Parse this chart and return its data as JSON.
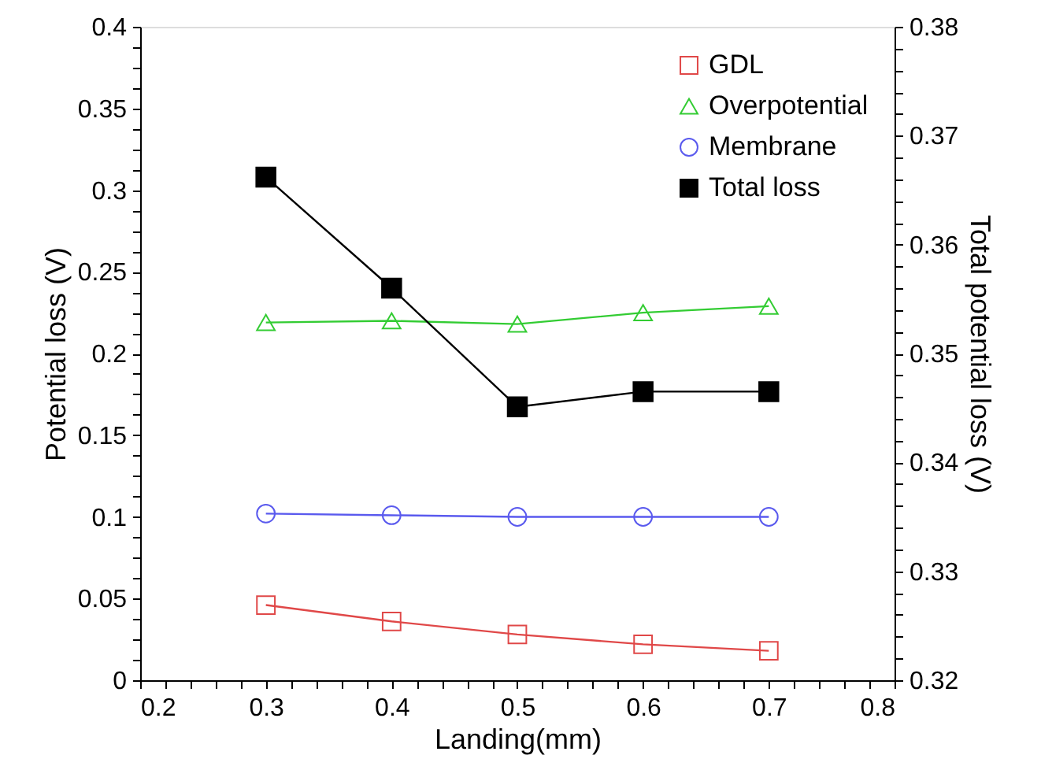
{
  "chart_data": {
    "type": "line",
    "xlabel": "Landing(mm)",
    "ylabel": "Potential loss (V)",
    "y2label": "Total potential loss (V)",
    "x": [
      0.3,
      0.4,
      0.5,
      0.6,
      0.7
    ],
    "series": [
      {
        "name": "GDL",
        "color": "#e04848",
        "marker": "square",
        "values": [
          0.046,
          0.036,
          0.028,
          0.022,
          0.018
        ]
      },
      {
        "name": "Overpotential",
        "color": "#33cc33",
        "marker": "triangle",
        "values": [
          0.219,
          0.22,
          0.218,
          0.225,
          0.229
        ]
      },
      {
        "name": "Membrane",
        "color": "#5a5aee",
        "marker": "circle",
        "values": [
          0.102,
          0.101,
          0.1,
          0.1,
          0.1
        ]
      },
      {
        "name": "Total  loss",
        "color": "#000000",
        "marker": "square",
        "axis": "y2",
        "values": [
          0.3662,
          0.356,
          0.3451,
          0.3465,
          0.3465
        ]
      }
    ],
    "xlim": [
      0.2,
      0.8
    ],
    "xticks": [
      0.2,
      {
        "value": 0.22,
        "label": null
      },
      {
        "value": 0.24,
        "label": null
      },
      {
        "value": 0.26,
        "label": null
      },
      {
        "value": 0.28,
        "label": null
      },
      0.3,
      {
        "value": 0.32,
        "label": null
      },
      {
        "value": 0.34,
        "label": null
      },
      {
        "value": 0.36,
        "label": null
      },
      {
        "value": 0.38,
        "label": null
      },
      0.4,
      {
        "value": 0.42,
        "label": null
      },
      {
        "value": 0.44,
        "label": null
      },
      {
        "value": 0.46,
        "label": null
      },
      {
        "value": 0.48,
        "label": null
      },
      0.5,
      {
        "value": 0.52,
        "label": null
      },
      {
        "value": 0.54,
        "label": null
      },
      {
        "value": 0.56,
        "label": null
      },
      {
        "value": 0.58,
        "label": null
      },
      0.6,
      {
        "value": 0.62,
        "label": null
      },
      {
        "value": 0.64,
        "label": null
      },
      {
        "value": 0.66,
        "label": null
      },
      {
        "value": 0.68,
        "label": null
      },
      0.7,
      {
        "value": 0.72,
        "label": null
      },
      {
        "value": 0.74,
        "label": null
      },
      {
        "value": 0.76,
        "label": null
      },
      {
        "value": 0.78,
        "label": null
      },
      0.8
    ],
    "ylim": [
      0,
      0.4
    ],
    "yticks": [
      0,
      {
        "value": 0.0125,
        "label": null
      },
      {
        "value": 0.025,
        "label": null
      },
      {
        "value": 0.0375,
        "label": null
      },
      0.05,
      {
        "value": 0.0625,
        "label": null
      },
      {
        "value": 0.075,
        "label": null
      },
      {
        "value": 0.0875,
        "label": null
      },
      0.1,
      {
        "value": 0.1125,
        "label": null
      },
      {
        "value": 0.125,
        "label": null
      },
      {
        "value": 0.1375,
        "label": null
      },
      0.15,
      {
        "value": 0.1625,
        "label": null
      },
      {
        "value": 0.175,
        "label": null
      },
      {
        "value": 0.1875,
        "label": null
      },
      0.2,
      {
        "value": 0.2125,
        "label": null
      },
      {
        "value": 0.225,
        "label": null
      },
      {
        "value": 0.2375,
        "label": null
      },
      0.25,
      {
        "value": 0.2625,
        "label": null
      },
      {
        "value": 0.275,
        "label": null
      },
      {
        "value": 0.2875,
        "label": null
      },
      0.3,
      {
        "value": 0.3125,
        "label": null
      },
      {
        "value": 0.325,
        "label": null
      },
      {
        "value": 0.3375,
        "label": null
      },
      0.35,
      {
        "value": 0.3625,
        "label": null
      },
      {
        "value": 0.375,
        "label": null
      },
      {
        "value": 0.3875,
        "label": null
      },
      0.4
    ],
    "y2lim": [
      0.32,
      0.38
    ],
    "y2ticks": [
      0.32,
      {
        "value": 0.322,
        "label": null
      },
      {
        "value": 0.324,
        "label": null
      },
      {
        "value": 0.326,
        "label": null
      },
      {
        "value": 0.328,
        "label": null
      },
      0.33,
      {
        "value": 0.332,
        "label": null
      },
      {
        "value": 0.334,
        "label": null
      },
      {
        "value": 0.336,
        "label": null
      },
      {
        "value": 0.338,
        "label": null
      },
      0.34,
      {
        "value": 0.342,
        "label": null
      },
      {
        "value": 0.344,
        "label": null
      },
      {
        "value": 0.346,
        "label": null
      },
      {
        "value": 0.348,
        "label": null
      },
      0.35,
      {
        "value": 0.352,
        "label": null
      },
      {
        "value": 0.354,
        "label": null
      },
      {
        "value": 0.356,
        "label": null
      },
      {
        "value": 0.358,
        "label": null
      },
      0.36,
      {
        "value": 0.362,
        "label": null
      },
      {
        "value": 0.364,
        "label": null
      },
      {
        "value": 0.366,
        "label": null
      },
      {
        "value": 0.368,
        "label": null
      },
      0.37,
      {
        "value": 0.372,
        "label": null
      },
      {
        "value": 0.374,
        "label": null
      },
      {
        "value": 0.376,
        "label": null
      },
      {
        "value": 0.378,
        "label": null
      },
      0.38
    ],
    "grid": false,
    "legend": "top right",
    "line_style": "solid"
  }
}
